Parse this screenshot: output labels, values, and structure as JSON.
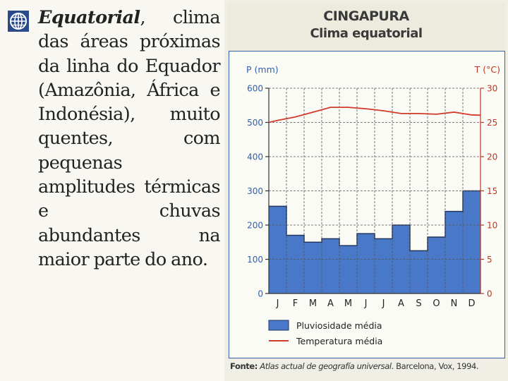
{
  "text": {
    "term": "Equatorial",
    "body": ", clima das áreas próximas da linha do Equador (Amazônia, África e Indonésia), muito quentes, com pequenas amplitudes térmicas e chuvas abundantes na maior parte do ano."
  },
  "icons": {
    "bullet": "globe-icon"
  },
  "colors": {
    "precip_fill": "#4a78c8",
    "temp_line": "#d23a2a",
    "grid": "#555555",
    "left_axis": "#2f5fae",
    "right_axis": "#c8321e"
  },
  "source": {
    "label": "Fonte:",
    "title": "Atlas actual de geografía universal",
    "rest": ". Barcelona, Vox, 1994."
  },
  "chart_data": {
    "type": "bar",
    "title": "CINGAPURA",
    "subtitle": "Clima equatorial",
    "categories": [
      "J",
      "F",
      "M",
      "A",
      "M",
      "J",
      "J",
      "A",
      "S",
      "O",
      "N",
      "D"
    ],
    "y_left": {
      "label": "P (mm)",
      "range": [
        0,
        600
      ],
      "ticks": [
        "0",
        "100",
        "200",
        "300",
        "400",
        "500",
        "600"
      ]
    },
    "y_right": {
      "label": "T (°C)",
      "range": [
        0,
        30
      ],
      "ticks": [
        "0",
        "5",
        "10",
        "15",
        "20",
        "25",
        "30"
      ]
    },
    "grid": true,
    "legend_position": "bottom",
    "series": [
      {
        "name": "Pluviosidade média",
        "type": "bar",
        "axis": "left",
        "values": [
          255,
          170,
          150,
          160,
          140,
          175,
          160,
          200,
          125,
          165,
          240,
          300
        ]
      },
      {
        "name": "Temperatura média",
        "type": "line",
        "axis": "right",
        "values": [
          25.3,
          25.8,
          26.5,
          27.2,
          27.2,
          27.0,
          26.7,
          26.3,
          26.3,
          26.2,
          26.5,
          26.1
        ]
      }
    ]
  }
}
